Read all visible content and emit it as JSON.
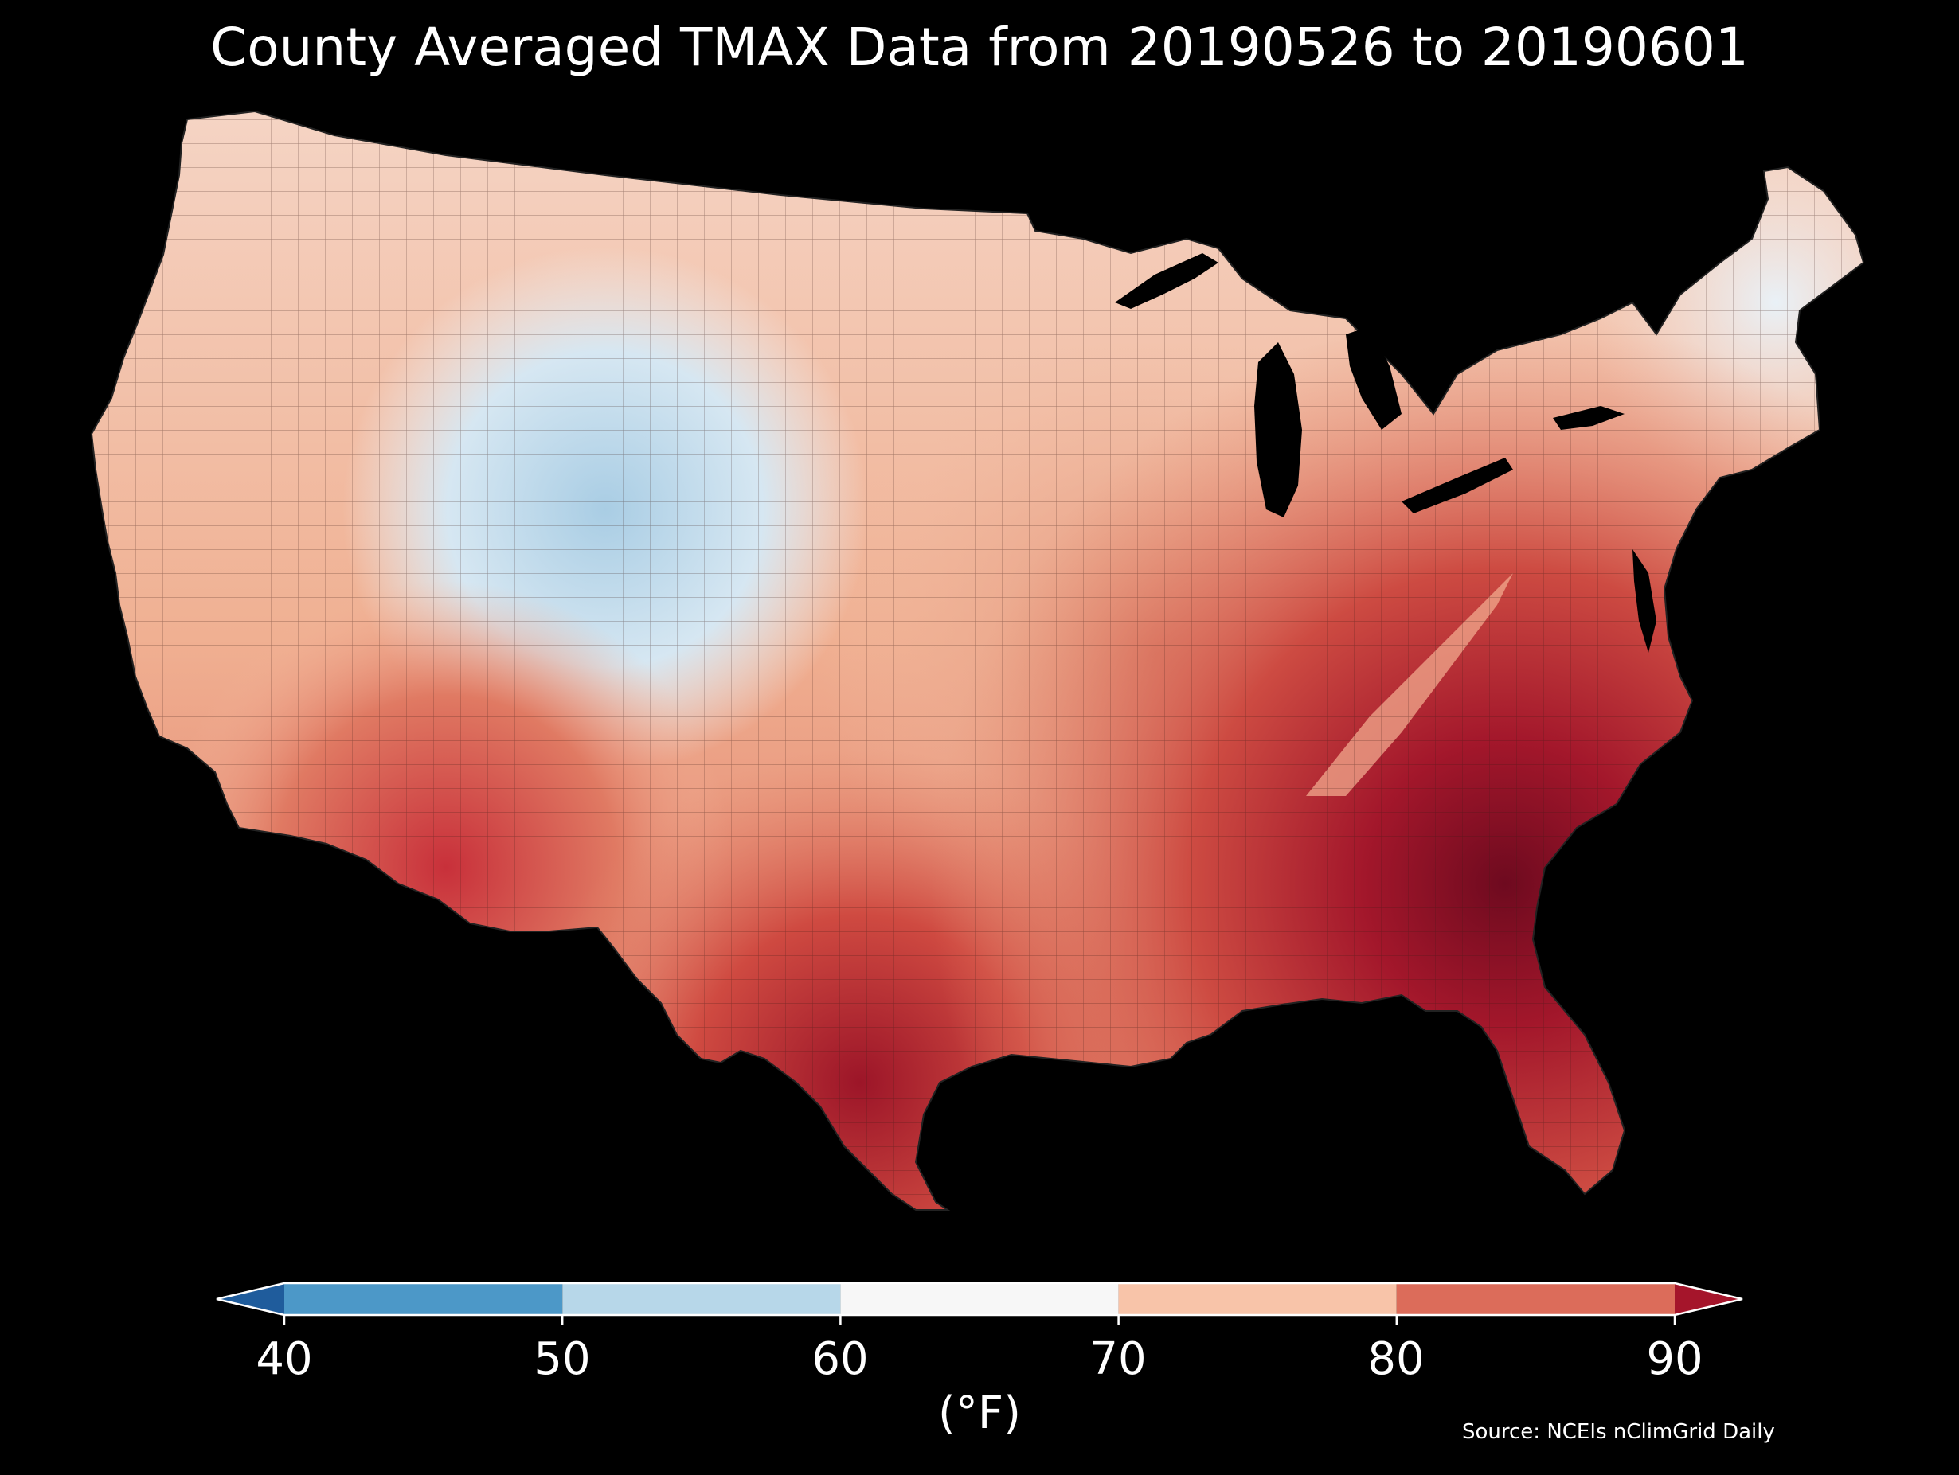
{
  "title": "County Averaged TMAX Data from 20190526 to 20190601",
  "colorbar": {
    "ticks": [
      "40",
      "50",
      "60",
      "70",
      "80",
      "90"
    ],
    "tick_values": [
      40,
      50,
      60,
      70,
      80,
      90
    ],
    "range": [
      40,
      90
    ],
    "extend": "both",
    "bins": [
      {
        "from": 40,
        "to": 50,
        "color": "#4c98c8"
      },
      {
        "from": 50,
        "to": 60,
        "color": "#b7d7e9"
      },
      {
        "from": 60,
        "to": 70,
        "color": "#f7f7f7"
      },
      {
        "from": 70,
        "to": 80,
        "color": "#f8c4a9"
      },
      {
        "from": 80,
        "to": 90,
        "color": "#dc6c5a"
      }
    ],
    "under_color": "#1f5c9c",
    "over_color": "#a5152b",
    "unit_label": "(°F)"
  },
  "source": "Source: NCEIs nClimGrid Daily",
  "map": {
    "region": "Contiguous United States",
    "variable": "TMAX",
    "background": "#000000",
    "gradient_stops": [
      {
        "region": "northwest",
        "color": "#f7e6dd"
      },
      {
        "region": "rockies",
        "color": "#cfe2ef"
      },
      {
        "region": "northern-plains",
        "color": "#f8d3bf"
      },
      {
        "region": "midwest",
        "color": "#f2b79b"
      },
      {
        "region": "northeast",
        "color": "#eef3f7"
      },
      {
        "region": "southwest",
        "color": "#d95a4c"
      },
      {
        "region": "south-central",
        "color": "#e07a63"
      },
      {
        "region": "southeast",
        "color": "#b2182b"
      },
      {
        "region": "georgia-carolinas",
        "color": "#7d0d22"
      }
    ]
  }
}
